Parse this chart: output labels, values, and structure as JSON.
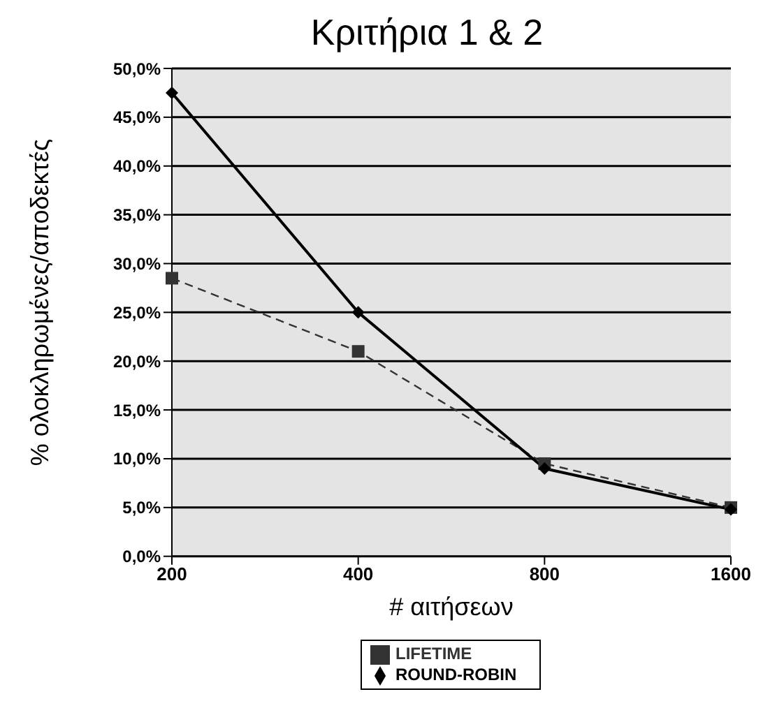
{
  "chart_data": {
    "type": "line",
    "title": "Κριτήρια 1 & 2",
    "xlabel": "# αιτήσεων",
    "ylabel": "% ολοκληρωμένες/αποδεκτές",
    "categories": [
      "200",
      "400",
      "800",
      "1600"
    ],
    "series": [
      {
        "name": "LIFETIME",
        "color": "#333333",
        "values": [
          28.5,
          21,
          9.5,
          5
        ],
        "marker": "square",
        "line_style": "dashed"
      },
      {
        "name": "ROUND-ROBIN",
        "color": "#000000",
        "values": [
          47.5,
          25,
          9,
          4.8
        ],
        "marker": "diamond",
        "line_style": "solid"
      }
    ],
    "ylim": [
      0,
      50
    ],
    "yticks": [
      {
        "value": 0,
        "label": "0,0%"
      },
      {
        "value": 5,
        "label": "5,0%"
      },
      {
        "value": 10,
        "label": "10,0%"
      },
      {
        "value": 15,
        "label": "15,0%"
      },
      {
        "value": 20,
        "label": "20,0%"
      },
      {
        "value": 25,
        "label": "25,0%"
      },
      {
        "value": 30,
        "label": "30,0%"
      },
      {
        "value": 35,
        "label": "35,0%"
      },
      {
        "value": 40,
        "label": "40,0%"
      },
      {
        "value": 45,
        "label": "45,0%"
      },
      {
        "value": 50,
        "label": "50,0%"
      }
    ],
    "grid": "y",
    "legend": "bottom"
  }
}
